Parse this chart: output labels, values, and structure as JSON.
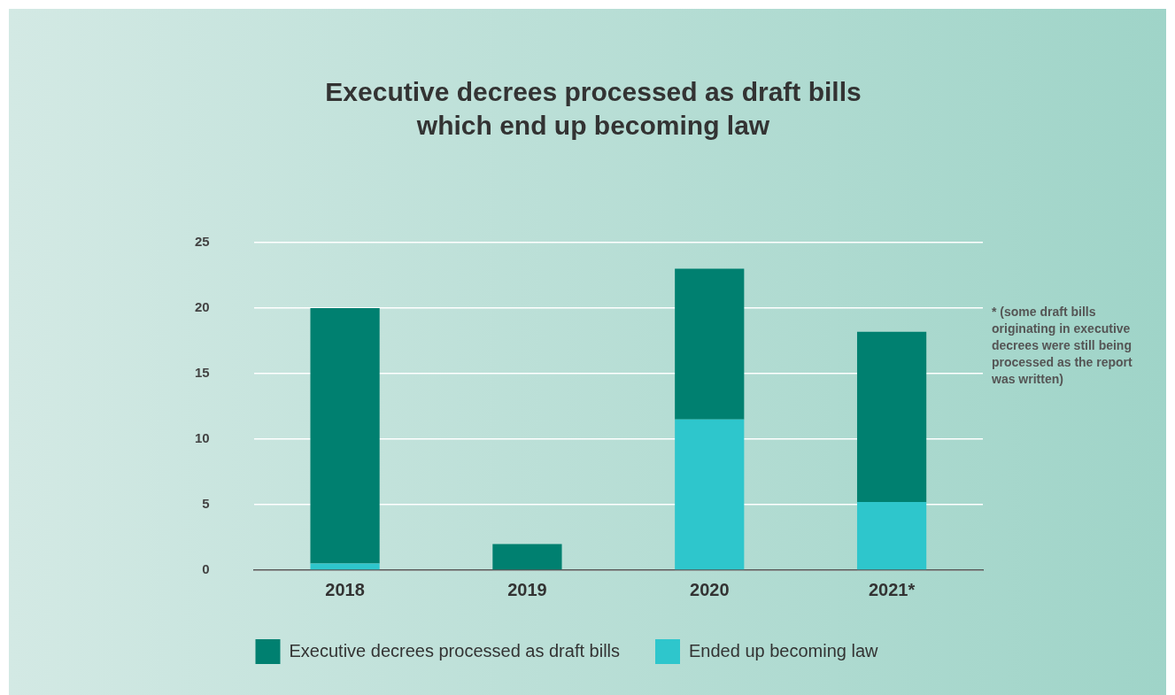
{
  "chart_data": {
    "type": "bar",
    "title": "Executive decrees processed as draft bills which end up becoming law",
    "categories": [
      "2018",
      "2019",
      "2020",
      "2021*"
    ],
    "stacked": true,
    "series": [
      {
        "name": "Ended up becoming law",
        "color": "#2ec6cc",
        "values": [
          0.5,
          0,
          11.5,
          5.2
        ]
      },
      {
        "name": "Executive decrees processed as draft bills",
        "color": "#008070",
        "values": [
          19.5,
          2,
          11.5,
          13
        ]
      }
    ],
    "ylim": [
      0,
      25
    ],
    "yticks": [
      0,
      5,
      10,
      15,
      20,
      25
    ],
    "grid": "y",
    "legend": "bottom",
    "annotations": [
      "* (some draft bills originating in executive decrees were still being processed as the report was written)"
    ]
  }
}
